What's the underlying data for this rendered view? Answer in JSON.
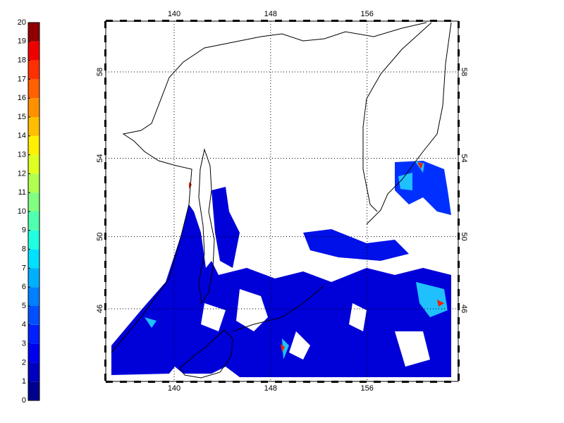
{
  "colorbar": {
    "ticks": [
      0,
      1,
      2,
      3,
      4,
      5,
      6,
      7,
      8,
      9,
      10,
      11,
      12,
      13,
      14,
      15,
      16,
      17,
      18,
      19,
      20
    ],
    "colors": [
      "#00008f",
      "#0000bf",
      "#0000ef",
      "#0020ff",
      "#0050ff",
      "#0080ff",
      "#00b0ff",
      "#00e0ff",
      "#20ffdf",
      "#50ffaf",
      "#80ff80",
      "#afff50",
      "#dfff20",
      "#ffef00",
      "#ffbf00",
      "#ff9000",
      "#ff6000",
      "#ff3000",
      "#ef0000",
      "#8f0000"
    ]
  },
  "map": {
    "lon_ticks": [
      140,
      148,
      156
    ],
    "lat_ticks": [
      46,
      50,
      54,
      58
    ]
  }
}
